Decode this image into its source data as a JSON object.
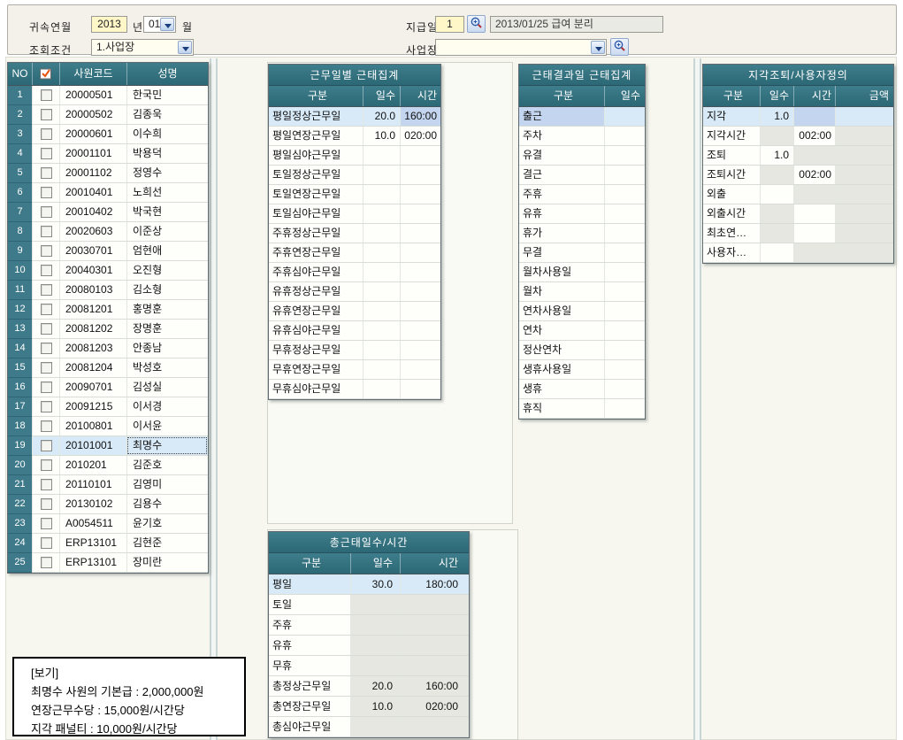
{
  "topbar": {
    "period_label": "귀속연월",
    "period_year": "2013",
    "year_suffix": "년",
    "period_month": "01",
    "month_suffix": "월",
    "condition_label": "조회조건",
    "condition_value": "1.사업장",
    "payday_label": "지급일",
    "payday_value": "1",
    "payday_desc": "2013/01/25 급여 분리",
    "worksite_label": "사업장",
    "worksite_value": ""
  },
  "employee_table": {
    "headers": {
      "no": "NO",
      "code": "사원코드",
      "name": "성명"
    },
    "selected_row_index": 18,
    "rows": [
      {
        "no": "1",
        "code": "20000501",
        "name": "한국민"
      },
      {
        "no": "2",
        "code": "20000502",
        "name": "김종욱"
      },
      {
        "no": "3",
        "code": "20000601",
        "name": "이수희"
      },
      {
        "no": "4",
        "code": "20001101",
        "name": "박용덕"
      },
      {
        "no": "5",
        "code": "20001102",
        "name": "정영수"
      },
      {
        "no": "6",
        "code": "20010401",
        "name": "노희선"
      },
      {
        "no": "7",
        "code": "20010402",
        "name": "박국현"
      },
      {
        "no": "8",
        "code": "20020603",
        "name": "이준상"
      },
      {
        "no": "9",
        "code": "20030701",
        "name": "엄현애"
      },
      {
        "no": "10",
        "code": "20040301",
        "name": "오진형"
      },
      {
        "no": "11",
        "code": "20080103",
        "name": "김소형"
      },
      {
        "no": "12",
        "code": "20081201",
        "name": "홍명훈"
      },
      {
        "no": "13",
        "code": "20081202",
        "name": "장명훈"
      },
      {
        "no": "14",
        "code": "20081203",
        "name": "안종남"
      },
      {
        "no": "15",
        "code": "20081204",
        "name": "박성호"
      },
      {
        "no": "16",
        "code": "20090701",
        "name": "김성실"
      },
      {
        "no": "17",
        "code": "20091215",
        "name": "이서경"
      },
      {
        "no": "18",
        "code": "20100801",
        "name": "이서윤"
      },
      {
        "no": "19",
        "code": "20101001",
        "name": "최명수"
      },
      {
        "no": "20",
        "code": "2010201",
        "name": "김준호"
      },
      {
        "no": "21",
        "code": "20110101",
        "name": "김영미"
      },
      {
        "no": "22",
        "code": "20130102",
        "name": "김용수"
      },
      {
        "no": "23",
        "code": "A0054511",
        "name": "윤기호"
      },
      {
        "no": "24",
        "code": "ERP13101",
        "name": "김현준"
      },
      {
        "no": "25",
        "code": "ERP13101",
        "name": "장미란"
      }
    ]
  },
  "workday_table": {
    "title": "근무일별 근태집계",
    "headers": [
      "구분",
      "일수",
      "시간"
    ],
    "rows": [
      {
        "label": "평일정상근무일",
        "days": "20.0",
        "time": "160:00",
        "selected": true
      },
      {
        "label": "평일연장근무일",
        "days": "10.0",
        "time": "020:00"
      },
      {
        "label": "평일심야근무일",
        "days": "",
        "time": ""
      },
      {
        "label": "토일정상근무일",
        "days": "",
        "time": ""
      },
      {
        "label": "토일연장근무일",
        "days": "",
        "time": ""
      },
      {
        "label": "토일심야근무일",
        "days": "",
        "time": ""
      },
      {
        "label": "주휴정상근무일",
        "days": "",
        "time": ""
      },
      {
        "label": "주휴연장근무일",
        "days": "",
        "time": ""
      },
      {
        "label": "주휴심야근무일",
        "days": "",
        "time": ""
      },
      {
        "label": "유휴정상근무일",
        "days": "",
        "time": ""
      },
      {
        "label": "유휴연장근무일",
        "days": "",
        "time": ""
      },
      {
        "label": "유휴심야근무일",
        "days": "",
        "time": ""
      },
      {
        "label": "무휴정상근무일",
        "days": "",
        "time": ""
      },
      {
        "label": "무휴연장근무일",
        "days": "",
        "time": ""
      },
      {
        "label": "무휴심야근무일",
        "days": "",
        "time": ""
      }
    ]
  },
  "result_table": {
    "title": "근태결과일 근태집계",
    "headers": [
      "구분",
      "일수"
    ],
    "rows": [
      {
        "label": "출근",
        "days": "",
        "selected": true
      },
      {
        "label": "주차",
        "days": ""
      },
      {
        "label": "유결",
        "days": ""
      },
      {
        "label": "결근",
        "days": ""
      },
      {
        "label": "주휴",
        "days": ""
      },
      {
        "label": "유휴",
        "days": ""
      },
      {
        "label": "휴가",
        "days": ""
      },
      {
        "label": "무결",
        "days": ""
      },
      {
        "label": "월차사용일",
        "days": ""
      },
      {
        "label": "월차",
        "days": ""
      },
      {
        "label": "연차사용일",
        "days": ""
      },
      {
        "label": "연차",
        "days": ""
      },
      {
        "label": "정산연차",
        "days": ""
      },
      {
        "label": "생휴사용일",
        "days": ""
      },
      {
        "label": "생휴",
        "days": ""
      },
      {
        "label": "휴직",
        "days": ""
      }
    ]
  },
  "custom_table": {
    "title": "지각조퇴/사용자정의",
    "headers": [
      "구분",
      "일수",
      "시간",
      "금액"
    ],
    "rows": [
      {
        "label": "지각",
        "days": "1.0",
        "time": "",
        "amount": "",
        "editable": "days",
        "selected": true
      },
      {
        "label": "지각시간",
        "days": "",
        "time": "002:00",
        "amount": "",
        "editable": "time"
      },
      {
        "label": "조퇴",
        "days": "1.0",
        "time": "",
        "amount": "",
        "editable": "days"
      },
      {
        "label": "조퇴시간",
        "days": "",
        "time": "002:00",
        "amount": "",
        "editable": "time"
      },
      {
        "label": "외출",
        "days": "",
        "time": "",
        "amount": "",
        "editable": "days"
      },
      {
        "label": "외출시간",
        "days": "",
        "time": "",
        "amount": "",
        "editable": "time"
      },
      {
        "label": "최초연…",
        "days": "",
        "time": "",
        "amount": "",
        "editable": "time"
      },
      {
        "label": "사용자…",
        "days": "",
        "time": "",
        "amount": "",
        "editable": "days"
      }
    ]
  },
  "total_table": {
    "title": "총근태일수/시간",
    "headers": [
      "구분",
      "일수",
      "시간"
    ],
    "rows": [
      {
        "label": "평일",
        "days": "30.0",
        "time": "180:00",
        "selected": true
      },
      {
        "label": "토일",
        "days": "",
        "time": ""
      },
      {
        "label": "주휴",
        "days": "",
        "time": ""
      },
      {
        "label": "유휴",
        "days": "",
        "time": ""
      },
      {
        "label": "무휴",
        "days": "",
        "time": ""
      },
      {
        "label": "총정상근무일",
        "days": "20.0",
        "time": "160:00"
      },
      {
        "label": "총연장근무일",
        "days": "10.0",
        "time": "020:00"
      },
      {
        "label": "총심야근무일",
        "days": "",
        "time": ""
      }
    ]
  },
  "info_box": {
    "lines": [
      "[보기]",
      "최명수 사원의 기본급 : 2,000,000원",
      "연장근무수당 : 15,000원/시간당",
      "지각 패널티 : 10,000원/시간당"
    ]
  },
  "icons": {
    "search": "search-icon",
    "dropdown_arrow": "chevron-down-icon",
    "check_all": "check-all-icon"
  },
  "colors": {
    "header_teal": "#31707E",
    "row_gutter_teal": "#3F7A8A",
    "row_highlight": "#D8EAF8",
    "cell_focus": "#C3D5EF",
    "field_yellow": "#FFF7C8",
    "disabled_cell": "#E7E7E1",
    "workspace_bg": "#F7F7F0"
  }
}
